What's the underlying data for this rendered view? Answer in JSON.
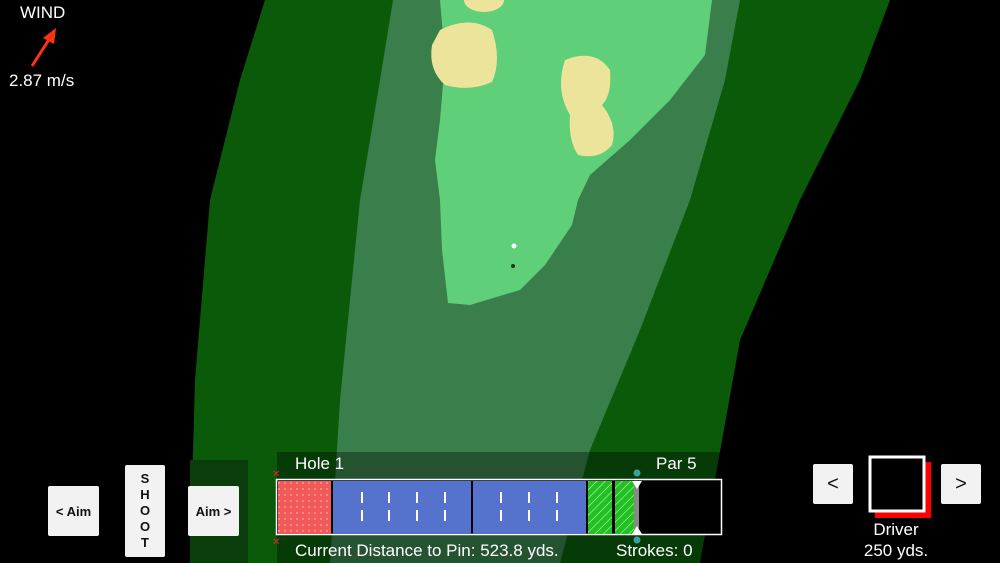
{
  "wind": {
    "label": "WIND",
    "speed": "2.87 m/s",
    "arrow_color": "#ff3311"
  },
  "controls": {
    "aim_left": "< Aim",
    "aim_right": "Aim >",
    "shoot_letters": [
      "S",
      "H",
      "O",
      "O",
      "T"
    ]
  },
  "scorebar": {
    "hole": "Hole 1",
    "par": "Par 5",
    "distance": "Current Distance to Pin: 523.8 yds.",
    "strokes": "Strokes: 0"
  },
  "club": {
    "prev": "<",
    "next": ">",
    "name": "Driver",
    "distance": "250 yds.",
    "accent": "#ff0000"
  },
  "colors": {
    "rough": "#0a5a0a",
    "fairway_edge": "#3a7e4c",
    "fairway": "#5fcf7a",
    "sand": "#ebe49a",
    "tee_zone": "#f25a5a",
    "blue_zone": "#5573cc",
    "green_zone": "#22c022"
  }
}
